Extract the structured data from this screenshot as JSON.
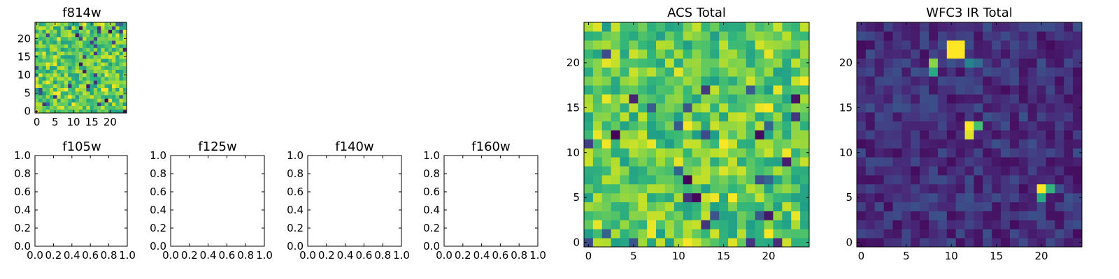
{
  "chart_data": [
    {
      "id": "f814w",
      "type": "heatmap",
      "title": "f814w",
      "xticks": [
        "0",
        "5",
        "10",
        "15",
        "20"
      ],
      "yticks": [
        "0",
        "5",
        "10",
        "15",
        "20"
      ],
      "xlim": [
        -0.5,
        24.5
      ],
      "ylim": [
        -0.5,
        24.5
      ],
      "colormap": "viridis",
      "seed": 814,
      "distribution": "high"
    },
    {
      "id": "f105w",
      "type": "empty",
      "title": "f105w",
      "xticks": [
        "0.0",
        "0.2",
        "0.4",
        "0.6",
        "0.8",
        "1.0"
      ],
      "yticks": [
        "0.0",
        "0.2",
        "0.4",
        "0.6",
        "0.8",
        "1.0"
      ],
      "xlim": [
        0,
        1
      ],
      "ylim": [
        0,
        1
      ]
    },
    {
      "id": "f125w",
      "type": "empty",
      "title": "f125w",
      "xticks": [
        "0.0",
        "0.2",
        "0.4",
        "0.6",
        "0.8",
        "1.0"
      ],
      "yticks": [
        "0.0",
        "0.2",
        "0.4",
        "0.6",
        "0.8",
        "1.0"
      ],
      "xlim": [
        0,
        1
      ],
      "ylim": [
        0,
        1
      ]
    },
    {
      "id": "f140w",
      "type": "empty",
      "title": "f140w",
      "xticks": [
        "0.0",
        "0.2",
        "0.4",
        "0.6",
        "0.8",
        "1.0"
      ],
      "yticks": [
        "0.0",
        "0.2",
        "0.4",
        "0.6",
        "0.8",
        "1.0"
      ],
      "xlim": [
        0,
        1
      ],
      "ylim": [
        0,
        1
      ]
    },
    {
      "id": "f160w",
      "type": "empty",
      "title": "f160w",
      "xticks": [
        "0.0",
        "0.2",
        "0.4",
        "0.6",
        "0.8",
        "1.0"
      ],
      "yticks": [
        "0.0",
        "0.2",
        "0.4",
        "0.6",
        "0.8",
        "1.0"
      ],
      "xlim": [
        0,
        1
      ],
      "ylim": [
        0,
        1
      ]
    },
    {
      "id": "acs-total",
      "type": "heatmap",
      "title": "ACS Total",
      "xticks": [
        "0",
        "5",
        "10",
        "15",
        "20"
      ],
      "yticks": [
        "0",
        "5",
        "10",
        "15",
        "20"
      ],
      "xlim": [
        -0.5,
        24.5
      ],
      "ylim": [
        -0.5,
        24.5
      ],
      "colormap": "viridis",
      "seed": 42,
      "distribution": "high"
    },
    {
      "id": "wfc3-ir-total",
      "type": "heatmap",
      "title": "WFC3 IR Total",
      "xticks": [
        "0",
        "5",
        "10",
        "15",
        "20"
      ],
      "yticks": [
        "0",
        "5",
        "10",
        "15",
        "20"
      ],
      "xlim": [
        -0.5,
        24.5
      ],
      "ylim": [
        -0.5,
        24.5
      ],
      "colormap": "viridis",
      "seed": 7,
      "distribution": "low",
      "hot_pixels": [
        [
          10,
          21,
          1.0
        ],
        [
          11,
          21,
          1.0
        ],
        [
          10,
          22,
          1.0
        ],
        [
          11,
          22,
          1.0
        ],
        [
          8,
          20,
          0.82
        ],
        [
          8,
          19,
          0.6
        ],
        [
          12,
          13,
          1.0
        ],
        [
          12,
          12,
          0.95
        ],
        [
          13,
          13,
          0.7
        ],
        [
          20,
          6,
          1.0
        ],
        [
          21,
          6,
          0.65
        ],
        [
          20,
          5,
          0.6
        ],
        [
          12,
          20,
          0.45
        ],
        [
          13,
          20,
          0.35
        ]
      ]
    }
  ]
}
